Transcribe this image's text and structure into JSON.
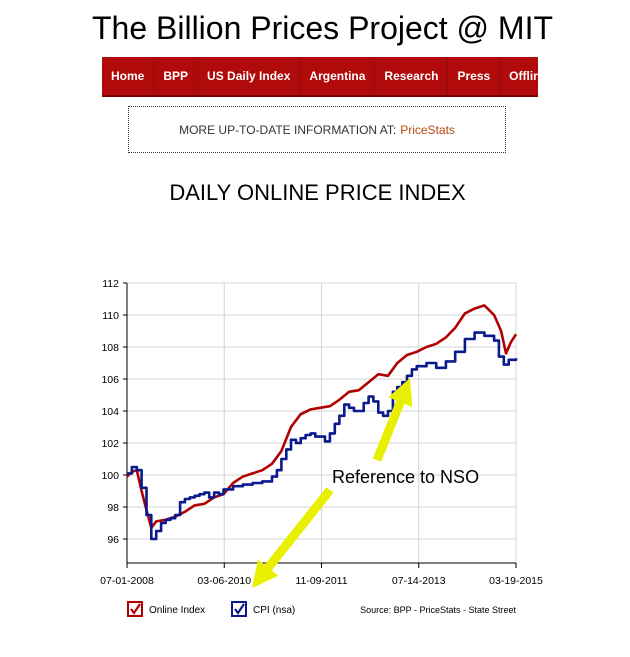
{
  "site": {
    "title": "The Billion Prices Project @ MIT"
  },
  "nav": {
    "items": [
      "Home",
      "BPP",
      "US Daily Index",
      "Argentina",
      "Research",
      "Press",
      "Offline"
    ]
  },
  "info_box": {
    "text": "MORE UP-TO-DATE INFORMATION AT:",
    "link": "PriceStats"
  },
  "colors": {
    "nav_bg": "#b10a0a",
    "online": "#b00000",
    "cpi": "#0a1a8c",
    "arrow": "#e8f000"
  },
  "chart_data": {
    "type": "line",
    "title": "DAILY ONLINE PRICE INDEX",
    "y_ticks": [
      96,
      98,
      100,
      102,
      104,
      106,
      108,
      110,
      112
    ],
    "ylim": [
      94.5,
      112
    ],
    "x_ticks": [
      "07-01-2008",
      "03-06-2010",
      "11-09-2011",
      "07-14-2013",
      "03-19-2015"
    ],
    "x_range": [
      "07-01-2008",
      "03-19-2015"
    ],
    "grid": true,
    "legend_position": "bottom-left",
    "source": "Source: BPP - PriceStats - State Street",
    "annotation": "Reference to NSO",
    "series": [
      {
        "name": "Online Index",
        "color": "#b00000",
        "points": [
          [
            "2008-07-01",
            99.9
          ],
          [
            "2008-08-01",
            100.2
          ],
          [
            "2008-09-01",
            100.3
          ],
          [
            "2008-10-01",
            99.0
          ],
          [
            "2008-11-01",
            97.8
          ],
          [
            "2008-12-01",
            96.7
          ],
          [
            "2009-01-01",
            97.1
          ],
          [
            "2009-03-01",
            97.2
          ],
          [
            "2009-05-01",
            97.4
          ],
          [
            "2009-07-01",
            97.7
          ],
          [
            "2009-09-01",
            98.1
          ],
          [
            "2009-11-01",
            98.2
          ],
          [
            "2010-01-01",
            98.6
          ],
          [
            "2010-03-01",
            98.8
          ],
          [
            "2010-05-01",
            99.5
          ],
          [
            "2010-07-01",
            99.9
          ],
          [
            "2010-09-01",
            100.1
          ],
          [
            "2010-11-01",
            100.3
          ],
          [
            "2011-01-01",
            100.7
          ],
          [
            "2011-03-01",
            101.5
          ],
          [
            "2011-05-01",
            103.0
          ],
          [
            "2011-07-01",
            103.8
          ],
          [
            "2011-09-01",
            104.1
          ],
          [
            "2011-11-01",
            104.2
          ],
          [
            "2012-01-01",
            104.3
          ],
          [
            "2012-03-01",
            104.7
          ],
          [
            "2012-05-01",
            105.2
          ],
          [
            "2012-07-01",
            105.3
          ],
          [
            "2012-09-01",
            105.8
          ],
          [
            "2012-11-01",
            106.3
          ],
          [
            "2013-01-01",
            106.2
          ],
          [
            "2013-03-01",
            107.0
          ],
          [
            "2013-05-01",
            107.5
          ],
          [
            "2013-07-01",
            107.7
          ],
          [
            "2013-09-01",
            108.0
          ],
          [
            "2013-11-01",
            108.2
          ],
          [
            "2014-01-01",
            108.6
          ],
          [
            "2014-03-01",
            109.2
          ],
          [
            "2014-05-01",
            110.1
          ],
          [
            "2014-07-01",
            110.4
          ],
          [
            "2014-09-01",
            110.6
          ],
          [
            "2014-11-01",
            110.0
          ],
          [
            "2014-12-15",
            109.0
          ],
          [
            "2015-01-15",
            107.6
          ],
          [
            "2015-02-15",
            108.3
          ],
          [
            "2015-03-19",
            108.8
          ]
        ]
      },
      {
        "name": "CPI (nsa)",
        "color": "#0a1a8c",
        "points": [
          [
            "2008-07-01",
            100.1
          ],
          [
            "2008-08-01",
            100.5
          ],
          [
            "2008-09-01",
            100.3
          ],
          [
            "2008-10-01",
            99.2
          ],
          [
            "2008-11-01",
            97.5
          ],
          [
            "2008-12-01",
            96.0
          ],
          [
            "2009-01-01",
            96.5
          ],
          [
            "2009-02-01",
            97.0
          ],
          [
            "2009-03-01",
            97.2
          ],
          [
            "2009-04-01",
            97.3
          ],
          [
            "2009-05-01",
            97.5
          ],
          [
            "2009-06-01",
            98.3
          ],
          [
            "2009-07-01",
            98.5
          ],
          [
            "2009-08-01",
            98.6
          ],
          [
            "2009-09-01",
            98.7
          ],
          [
            "2009-10-01",
            98.8
          ],
          [
            "2009-11-01",
            98.9
          ],
          [
            "2009-12-01",
            98.6
          ],
          [
            "2010-01-01",
            98.9
          ],
          [
            "2010-02-01",
            98.8
          ],
          [
            "2010-03-01",
            99.1
          ],
          [
            "2010-05-01",
            99.3
          ],
          [
            "2010-07-01",
            99.4
          ],
          [
            "2010-09-01",
            99.5
          ],
          [
            "2010-11-01",
            99.6
          ],
          [
            "2011-01-01",
            99.9
          ],
          [
            "2011-02-01",
            100.3
          ],
          [
            "2011-03-01",
            101.0
          ],
          [
            "2011-04-01",
            101.6
          ],
          [
            "2011-05-01",
            102.2
          ],
          [
            "2011-06-01",
            102.0
          ],
          [
            "2011-07-01",
            102.3
          ],
          [
            "2011-08-01",
            102.5
          ],
          [
            "2011-09-01",
            102.6
          ],
          [
            "2011-10-01",
            102.4
          ],
          [
            "2011-11-01",
            102.4
          ],
          [
            "2011-12-01",
            102.1
          ],
          [
            "2012-01-01",
            102.6
          ],
          [
            "2012-02-01",
            103.2
          ],
          [
            "2012-03-01",
            103.7
          ],
          [
            "2012-04-01",
            104.4
          ],
          [
            "2012-05-01",
            104.2
          ],
          [
            "2012-06-01",
            104.0
          ],
          [
            "2012-07-01",
            104.0
          ],
          [
            "2012-08-01",
            104.5
          ],
          [
            "2012-09-01",
            104.9
          ],
          [
            "2012-10-01",
            104.6
          ],
          [
            "2012-11-01",
            103.9
          ],
          [
            "2012-12-01",
            103.7
          ],
          [
            "2013-01-01",
            104.0
          ],
          [
            "2013-02-01",
            105.2
          ],
          [
            "2013-03-01",
            105.5
          ],
          [
            "2013-04-01",
            105.8
          ],
          [
            "2013-05-01",
            106.2
          ],
          [
            "2013-06-01",
            106.6
          ],
          [
            "2013-07-01",
            106.8
          ],
          [
            "2013-09-01",
            107.0
          ],
          [
            "2013-11-01",
            106.7
          ],
          [
            "2014-01-01",
            107.1
          ],
          [
            "2014-03-01",
            107.7
          ],
          [
            "2014-05-01",
            108.5
          ],
          [
            "2014-07-01",
            108.9
          ],
          [
            "2014-09-01",
            108.7
          ],
          [
            "2014-11-01",
            108.4
          ],
          [
            "2014-12-01",
            107.4
          ],
          [
            "2015-01-01",
            106.9
          ],
          [
            "2015-02-01",
            107.2
          ],
          [
            "2015-03-19",
            107.3
          ]
        ]
      }
    ]
  }
}
